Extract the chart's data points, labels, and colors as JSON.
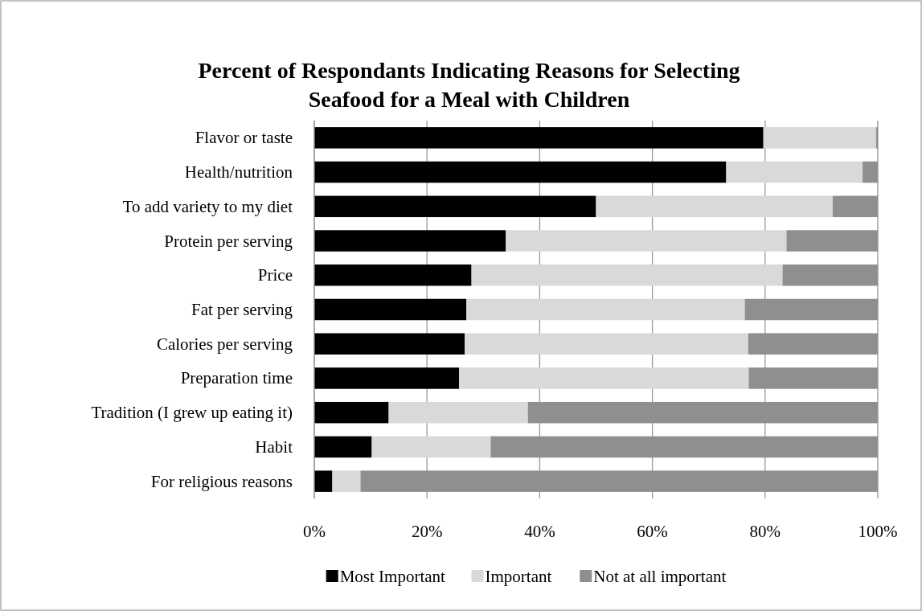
{
  "chart_data": {
    "type": "bar",
    "orientation": "horizontal",
    "stacked": true,
    "title": "Percent of Respondants Indicating Reasons for Selecting Seafood for a Meal with Children",
    "categories": [
      "Flavor or taste",
      "Health/nutrition",
      "To add variety to my diet",
      "Protein per serving",
      "Price",
      "Fat per serving",
      "Calories per serving",
      "Preparation time",
      "Tradition (I grew up eating it)",
      "Habit",
      "For religious reasons"
    ],
    "series": [
      {
        "name": "Most Important",
        "color": "#000000",
        "values": [
          79.7,
          73.1,
          50,
          34,
          27.9,
          27,
          26.7,
          25.7,
          13.2,
          10.2,
          3.2
        ]
      },
      {
        "name": "Important",
        "color": "#d9d9d9",
        "values": [
          20,
          24.2,
          42,
          49.8,
          55.2,
          49.4,
          50.3,
          51.4,
          24.7,
          21.1,
          5
        ]
      },
      {
        "name": "Not at all important",
        "color": "#8f8f8f",
        "values": [
          0.3,
          2.7,
          8,
          16.2,
          16.9,
          23.6,
          23,
          22.9,
          62.1,
          68.7,
          91.8
        ]
      }
    ],
    "xlim": [
      0,
      100
    ],
    "xticks": [
      {
        "value": 0,
        "label": "0%"
      },
      {
        "value": 20,
        "label": "20%"
      },
      {
        "value": 40,
        "label": "40%"
      },
      {
        "value": 60,
        "label": "60%"
      },
      {
        "value": 80,
        "label": "80%"
      },
      {
        "value": 100,
        "label": "100%"
      }
    ],
    "grid": "x",
    "legend": "bottom"
  }
}
